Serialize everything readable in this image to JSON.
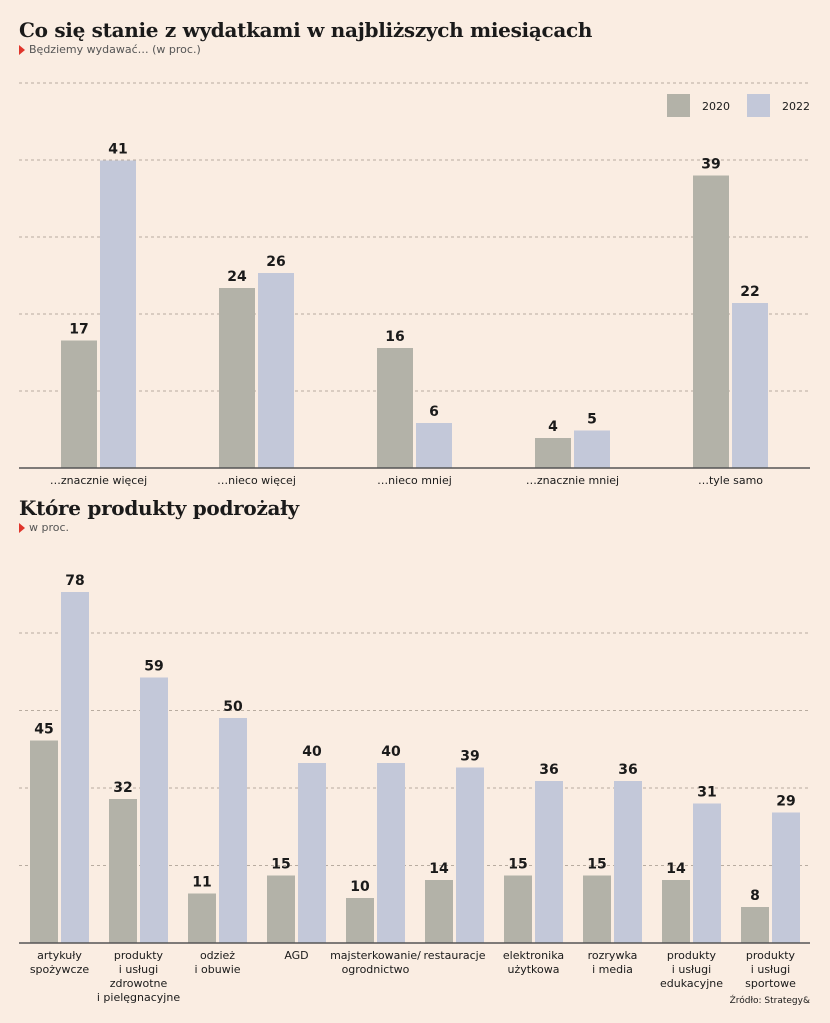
{
  "colors": {
    "s2020": "#b3b2a8",
    "s2022": "#c3c8d9",
    "accent": "#e0352b",
    "grid": "#b8aca0",
    "axis": "#555555"
  },
  "top": {
    "title": "Co się stanie z wydatkami w najbliższych miesiącach",
    "subtitle": "Będziemy wydawać… (w proc.)"
  },
  "bottom": {
    "title": "Które produkty podrożały",
    "subtitle": "w proc."
  },
  "source": "Źródło: Strategy&",
  "chart_data": [
    {
      "type": "bar",
      "title": "Co się stanie z wydatkami w najbliższych miesiącach",
      "subtitle": "Będziemy wydawać… (w proc.)",
      "categories": [
        "…znacznie więcej",
        "…nieco więcej",
        "…nieco mniej",
        "…znacznie mniej",
        "…tyle samo"
      ],
      "series": [
        {
          "name": "2020",
          "values": [
            17,
            24,
            16,
            4,
            39
          ]
        },
        {
          "name": "2022",
          "values": [
            41,
            26,
            6,
            5,
            22
          ]
        }
      ],
      "ylim": [
        0,
        50
      ],
      "grid": true,
      "legend": "top-right"
    },
    {
      "type": "bar",
      "title": "Które produkty podrożały",
      "subtitle": "w proc.",
      "categories": [
        [
          "artykuły",
          "spożywcze"
        ],
        [
          "produkty",
          "i usługi",
          "zdrowotne",
          "i pielęgnacyjne"
        ],
        [
          "odzież",
          "i obuwie"
        ],
        [
          "AGD"
        ],
        [
          "majsterkowanie/",
          "ogrodnictwo"
        ],
        [
          "restauracje"
        ],
        [
          "elektronika",
          "użytkowa"
        ],
        [
          "rozrywka",
          "i media"
        ],
        [
          "produkty",
          "i usługi",
          "edukacyjne"
        ],
        [
          "produkty",
          "i usługi",
          "sportowe"
        ]
      ],
      "series": [
        {
          "name": "2020",
          "values": [
            45,
            32,
            11,
            15,
            10,
            14,
            15,
            15,
            14,
            8
          ]
        },
        {
          "name": "2022",
          "values": [
            78,
            59,
            50,
            40,
            40,
            39,
            36,
            36,
            31,
            29
          ]
        }
      ],
      "ylim": [
        0,
        90
      ],
      "grid": true
    }
  ]
}
